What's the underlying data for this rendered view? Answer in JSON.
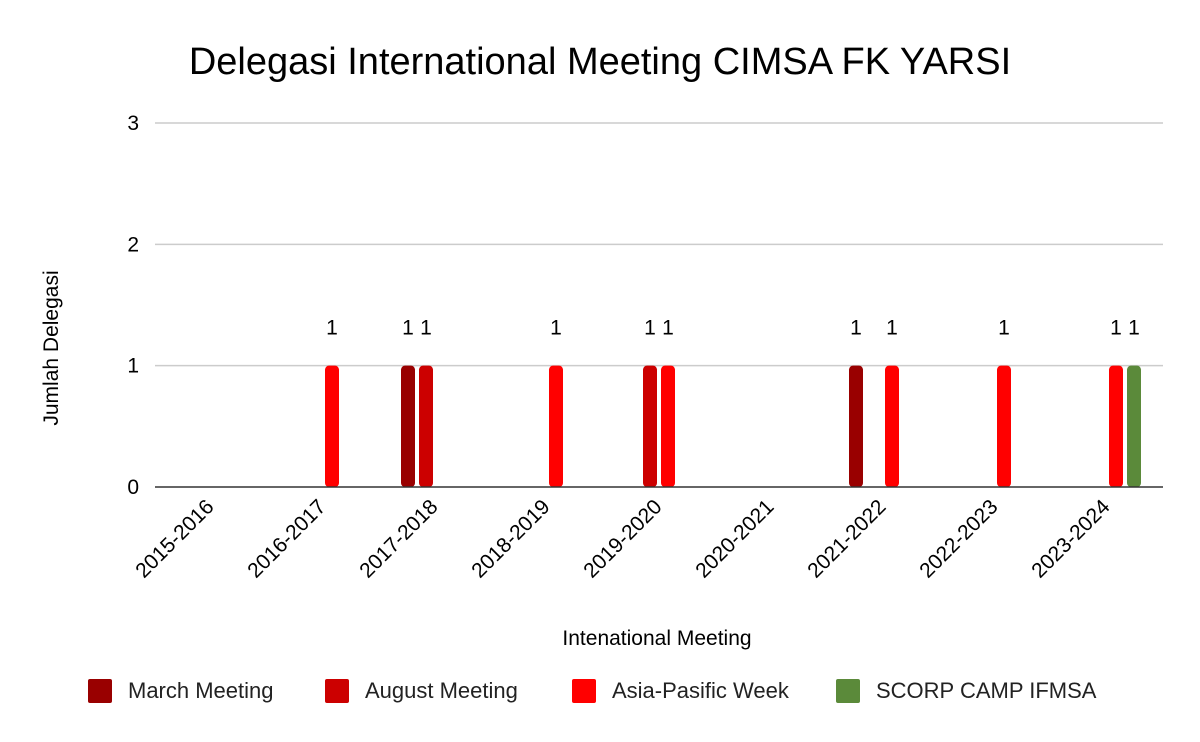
{
  "chart_data": {
    "type": "bar",
    "title": "Delegasi International Meeting CIMSA FK YARSI",
    "xlabel": "Intenational Meeting",
    "ylabel": "Jumlah Delegasi",
    "ylim": [
      0,
      3
    ],
    "yticks": [
      0,
      1,
      2,
      3
    ],
    "grid": true,
    "legend_position": "bottom",
    "categories": [
      "2015-2016",
      "2016-2017",
      "2017-2018",
      "2018-2019",
      "2019-2020",
      "2020-2021",
      "2021-2022",
      "2022-2023",
      "2023-2024"
    ],
    "series": [
      {
        "name": "March Meeting",
        "color": "#990000",
        "values": [
          null,
          null,
          1,
          null,
          null,
          null,
          1,
          null,
          null
        ]
      },
      {
        "name": "August Meeting",
        "color": "#cc0000",
        "values": [
          null,
          null,
          1,
          null,
          1,
          null,
          null,
          null,
          null
        ]
      },
      {
        "name": "Asia-Pasific Week",
        "color": "#ff0000",
        "values": [
          null,
          1,
          null,
          1,
          1,
          null,
          1,
          1,
          1
        ]
      },
      {
        "name": "SCORP CAMP IFMSA",
        "color": "#5b8a3a",
        "values": [
          null,
          null,
          null,
          null,
          null,
          null,
          null,
          null,
          1
        ]
      }
    ]
  }
}
